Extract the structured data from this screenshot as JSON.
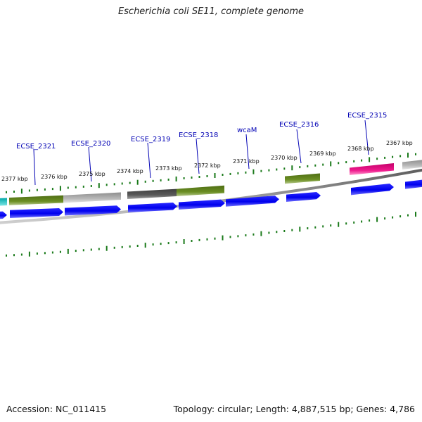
{
  "header": {
    "title": "Escherichia coli SE11, complete genome"
  },
  "footer": {
    "accession": "Accession: NC_011415",
    "summary": "Topology: circular; Length: 4,887,515 bp; Genes: 4,786"
  },
  "genome_map": {
    "scale_labels": [
      "2377 kbp",
      "2376 kbp",
      "2375 kbp",
      "2374 kbp",
      "2373 kbp",
      "2372 kbp",
      "2371 kbp",
      "2370 kbp",
      "2369 kbp",
      "2368 kbp",
      "2367 kbp"
    ],
    "gene_labels": [
      "ECSE_2321",
      "ECSE_2320",
      "ECSE_2319",
      "ECSE_2318",
      "wcaM",
      "ECSE_2316",
      "ECSE_2315"
    ],
    "colors": {
      "cds": "#0000ee",
      "olive_feature": "#6b8e23",
      "gray_feature": "#b0b0b0",
      "dark_gray_feature": "#555555",
      "pink_feature": "#e6007e",
      "cyan_feature": "#00c8c8",
      "tick": "#1a7a1a",
      "backbone": "#808080",
      "label": "#0000b4"
    }
  }
}
